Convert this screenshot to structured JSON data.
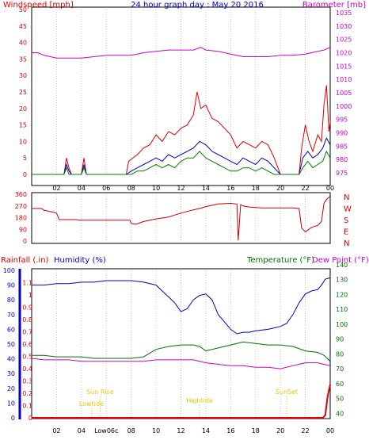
{
  "colors": {
    "wind": "#e00000",
    "wind_avg": "#0000c8",
    "wind_gust_low": "#008000",
    "baro": "#cc00cc",
    "dir": "#cc0000",
    "hum": "#0000c8",
    "temp": "#007000",
    "dew": "#cc00cc",
    "rain": "#e00000",
    "event": "#e8c800",
    "axis_blue": "#0000c8"
  },
  "header": {
    "title": "24 hour graph day : May 20 2016",
    "wind_label": "Windspeed [mph]",
    "baro_label": "Barometer [mb]"
  },
  "panel3": {
    "rain_label": "Rainfall (.in)",
    "hum_label": "Humidity (%)",
    "temp_label": "Temperature (°F)",
    "dew_label": "Dew Point (°F)"
  },
  "events": [
    {
      "label": "Sun Rise",
      "x": 5.5
    },
    {
      "label": "Lowtide",
      "x": 4.8
    },
    {
      "label": "Hightide",
      "x": 13.5
    },
    {
      "label": "SunSet",
      "x": 20.5
    }
  ],
  "x_ticks": [
    "02",
    "04",
    "06",
    "08",
    "10",
    "12",
    "14",
    "16",
    "18",
    "20",
    "22",
    "00"
  ],
  "x_tick_bottom_special": "Low06c",
  "chart_data": [
    {
      "type": "line",
      "title": "24 hour graph day : May 20 2016",
      "x_range": [
        0,
        24
      ],
      "y_left": {
        "label": "Windspeed [mph]",
        "range": [
          0,
          50
        ],
        "ticks": [
          0,
          5,
          10,
          15,
          20,
          25,
          30,
          35,
          40,
          45,
          50
        ]
      },
      "y_right": {
        "label": "Barometer [mb]",
        "range": [
          972,
          1035
        ],
        "ticks": [
          975,
          980,
          985,
          990,
          995,
          1000,
          1005,
          1010,
          1015,
          1020,
          1025,
          1030,
          1035
        ]
      },
      "series": [
        {
          "key": "gust",
          "axis": "left",
          "x": [
            0,
            2.6,
            2.8,
            3.0,
            3.2,
            4.0,
            4.2,
            4.4,
            7.6,
            7.8,
            8.5,
            9,
            9.5,
            10,
            10.5,
            11,
            11.5,
            12,
            12.5,
            13,
            13.3,
            13.6,
            14,
            14.5,
            15,
            15.5,
            16,
            16.5,
            17,
            17.5,
            18,
            18.5,
            19,
            19.5,
            20,
            21.5,
            21.7,
            22,
            22.3,
            22.6,
            23,
            23.3,
            23.5,
            23.7,
            23.9,
            24
          ],
          "y": [
            0,
            0,
            5,
            2,
            0,
            0,
            5,
            0,
            0,
            4,
            6,
            8,
            9,
            12,
            10,
            13,
            12,
            14,
            15,
            18,
            25,
            20,
            21,
            17,
            16,
            14,
            12,
            8,
            10,
            9,
            8,
            10,
            9,
            5,
            0,
            0,
            8,
            15,
            10,
            7,
            12,
            10,
            21,
            27,
            13,
            16
          ]
        },
        {
          "key": "avg",
          "axis": "left",
          "x": [
            0,
            2.6,
            2.8,
            3.0,
            3.2,
            4.0,
            4.2,
            4.4,
            7.6,
            8,
            8.5,
            9,
            9.5,
            10,
            10.5,
            11,
            11.5,
            12,
            12.5,
            13,
            13.5,
            14,
            14.5,
            15,
            15.5,
            16,
            16.5,
            17,
            17.5,
            18,
            18.5,
            19,
            19.5,
            20,
            21.5,
            21.8,
            22.2,
            22.6,
            23,
            23.4,
            23.7,
            24
          ],
          "y": [
            0,
            0,
            3,
            1,
            0,
            0,
            3,
            0,
            0,
            1,
            2,
            3,
            4,
            5,
            4,
            6,
            5,
            6,
            7,
            8,
            10,
            9,
            7,
            6,
            5,
            4,
            3,
            5,
            4,
            3,
            5,
            4,
            2,
            0,
            0,
            5,
            7,
            5,
            6,
            8,
            11,
            9
          ]
        },
        {
          "key": "low",
          "axis": "left",
          "x": [
            0,
            2.6,
            2.8,
            3.0,
            3.2,
            4.0,
            4.2,
            4.4,
            7.6,
            8,
            8.5,
            9,
            9.5,
            10,
            10.5,
            11,
            11.5,
            12,
            12.5,
            13,
            13.5,
            14,
            14.5,
            15,
            15.5,
            16,
            16.5,
            17,
            17.5,
            18,
            18.5,
            19,
            19.5,
            20,
            21.5,
            21.8,
            22.2,
            22.6,
            23,
            23.4,
            23.7,
            24
          ],
          "y": [
            0,
            0,
            2,
            0,
            0,
            0,
            2,
            0,
            0,
            0,
            1,
            1,
            2,
            3,
            2,
            3,
            2,
            4,
            5,
            5,
            7,
            5,
            4,
            3,
            2,
            1,
            1,
            2,
            2,
            1,
            2,
            1,
            0,
            0,
            0,
            2,
            4,
            2,
            3,
            4,
            7,
            5
          ]
        },
        {
          "key": "baro",
          "axis": "right",
          "x": [
            0,
            0.5,
            1,
            2,
            3,
            4,
            5,
            6,
            7,
            8,
            9,
            10,
            11,
            12,
            13,
            13.6,
            14,
            15,
            16,
            17,
            18,
            19,
            20,
            21,
            22,
            22.5,
            23,
            23.5,
            24
          ],
          "y": [
            1020,
            1020,
            1019,
            1018,
            1018,
            1018,
            1018.5,
            1019,
            1019,
            1019,
            1020,
            1020.5,
            1021,
            1021,
            1021,
            1022,
            1021,
            1020.5,
            1019.5,
            1018.5,
            1018.5,
            1018.5,
            1019,
            1019,
            1019.5,
            1020,
            1020.5,
            1021,
            1022
          ]
        }
      ]
    },
    {
      "type": "line",
      "y_left": {
        "range": [
          0,
          360
        ],
        "ticks": [
          0,
          90,
          180,
          270,
          360
        ]
      },
      "y_right_labels": [
        "N",
        "W",
        "S",
        "E",
        "N"
      ],
      "series": [
        {
          "key": "direction",
          "x": [
            0,
            0.8,
            1.0,
            1.1,
            1.8,
            2.0,
            2.2,
            3.6,
            3.8,
            4.0,
            7.9,
            8.0,
            8.4,
            9,
            10,
            11,
            12,
            13,
            13.5,
            14,
            15,
            16,
            16.5,
            16.6,
            16.8,
            17,
            17.5,
            18,
            18.5,
            19,
            20,
            21,
            21.5,
            21.7,
            22,
            22.5,
            23,
            23.3,
            23.5,
            23.7,
            24
          ],
          "y": [
            250,
            250,
            235,
            235,
            220,
            215,
            165,
            165,
            160,
            160,
            160,
            135,
            130,
            150,
            170,
            185,
            215,
            240,
            250,
            265,
            285,
            290,
            285,
            5,
            280,
            270,
            262,
            258,
            255,
            255,
            255,
            255,
            250,
            100,
            70,
            105,
            120,
            150,
            290,
            320,
            345
          ]
        }
      ]
    },
    {
      "type": "line",
      "y_left_rain": {
        "label": "Rainfall (.in)",
        "range": [
          0,
          1.2
        ],
        "ticks": [
          0,
          0.1,
          0.2,
          0.3,
          0.4,
          0.5,
          0.6,
          0.7,
          0.8,
          0.9,
          1,
          1.1
        ]
      },
      "y_left_hum": {
        "label": "Humidity (%)",
        "range": [
          0,
          100
        ],
        "ticks": [
          0,
          10,
          20,
          30,
          40,
          50,
          60,
          70,
          80,
          90,
          100
        ]
      },
      "y_right": {
        "label": "Temperature (°F)",
        "range": [
          30,
          140
        ],
        "ticks": [
          40,
          50,
          60,
          70,
          80,
          90,
          100,
          110,
          120,
          130,
          140
        ]
      },
      "series": [
        {
          "key": "humidity",
          "axis": "hum",
          "x": [
            0,
            1,
            2,
            3,
            4,
            5,
            6,
            7,
            8,
            9,
            10,
            11,
            11.5,
            12,
            12.5,
            13,
            13.5,
            14,
            14.5,
            15,
            15.5,
            16,
            16.5,
            17,
            17.5,
            18,
            19,
            20,
            20.5,
            21,
            21.5,
            22,
            22.5,
            23,
            23.3,
            23.6,
            24
          ],
          "y": [
            90,
            90,
            91,
            91,
            92,
            92,
            93,
            93,
            93,
            92,
            90,
            82,
            78,
            72,
            74,
            80,
            83,
            84,
            80,
            70,
            65,
            60,
            57,
            58,
            58,
            59,
            60,
            62,
            64,
            70,
            78,
            84,
            86,
            87,
            90,
            94,
            95
          ]
        },
        {
          "key": "temperature",
          "axis": "temp",
          "x": [
            0,
            1,
            2,
            3,
            4,
            5,
            6,
            7,
            8,
            9,
            10,
            11,
            12,
            13,
            13.5,
            14,
            15,
            16,
            17,
            18,
            19,
            20,
            21,
            22,
            23,
            23.5,
            24
          ],
          "y": [
            79,
            79,
            78,
            78,
            78,
            77,
            77,
            77,
            77,
            78,
            83,
            85,
            86,
            86,
            85,
            82,
            84,
            86,
            88,
            87,
            86,
            86,
            85,
            82,
            81,
            79,
            75
          ]
        },
        {
          "key": "dewpoint",
          "axis": "temp",
          "x": [
            0,
            1,
            2,
            3,
            4,
            5,
            6,
            7,
            8,
            9,
            10,
            11,
            12,
            13,
            14,
            15,
            16,
            17,
            18,
            19,
            20,
            21,
            22,
            23,
            23.5,
            24
          ],
          "y": [
            77,
            76,
            76,
            76,
            75,
            75,
            75,
            75,
            75,
            75,
            76,
            76,
            76,
            76,
            74,
            73,
            72,
            72,
            71,
            71,
            70,
            72,
            74,
            74,
            73,
            72
          ]
        },
        {
          "key": "rain",
          "axis": "rain",
          "x": [
            0,
            23.4,
            23.6,
            23.8,
            24
          ],
          "y": [
            0,
            0,
            0.02,
            0.18,
            0.27
          ]
        }
      ]
    }
  ]
}
